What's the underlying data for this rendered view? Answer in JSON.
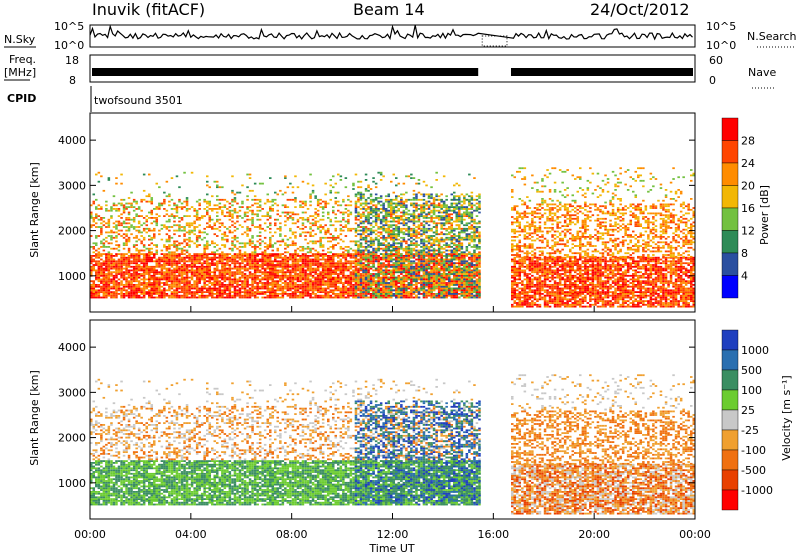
{
  "header": {
    "station": "Inuvik (fitACF)",
    "beam": "Beam 14",
    "date": "24/Oct/2012"
  },
  "top_panels": {
    "nsky_label": "N.Sky",
    "nsky_ticks": [
      "10^5",
      "10^0"
    ],
    "nsearch_label": "N.Search",
    "nsearch_ticks": [
      "10^5",
      "10^0"
    ],
    "freq_label": "Freq.",
    "freq_unit": "[MHz]",
    "freq_ticks": [
      "18",
      "8"
    ],
    "nave_label": "Nave",
    "nave_ticks": [
      "60",
      "0"
    ],
    "cpid_label": "CPID",
    "cpid_value": "twofsound 3501"
  },
  "chart_data": [
    {
      "type": "heatmap",
      "panel": "power",
      "ylabel": "Slant Range [km]",
      "xlabel": "",
      "x_range_hours": [
        0,
        24
      ],
      "ylim": [
        200,
        4600
      ],
      "y_ticks": [
        "1000",
        "2000",
        "3000",
        "4000"
      ],
      "data_gap_hours": [
        15.4,
        16.7
      ],
      "colorbar": {
        "label": "Power [dB]",
        "ticks": [
          "4",
          "8",
          "12",
          "16",
          "20",
          "24",
          "28"
        ],
        "colors": [
          "#0000ff",
          "#2a4fa0",
          "#2e8b57",
          "#73c140",
          "#f2b705",
          "#ff8c00",
          "#ff4500",
          "#ff0000"
        ]
      }
    },
    {
      "type": "heatmap",
      "panel": "velocity",
      "ylabel": "Slant Range [km]",
      "xlabel": "Time UT",
      "x_ticks": [
        "00:00",
        "04:00",
        "08:00",
        "12:00",
        "16:00",
        "20:00",
        "00:00"
      ],
      "x_range_hours": [
        0,
        24
      ],
      "ylim": [
        200,
        4600
      ],
      "y_ticks": [
        "1000",
        "2000",
        "3000",
        "4000"
      ],
      "data_gap_hours": [
        15.4,
        16.7
      ],
      "colorbar": {
        "label": "Velocity [m s⁻¹]",
        "ticks": [
          "1000",
          "500",
          "100",
          "25",
          "-25",
          "-100",
          "-500",
          "-1000"
        ],
        "colors": [
          "#1f3fbf",
          "#2a6fb0",
          "#3b8e62",
          "#6ccc30",
          "#c8c8c8",
          "#f0a030",
          "#f07010",
          "#e84000",
          "#ff0000"
        ]
      }
    }
  ]
}
